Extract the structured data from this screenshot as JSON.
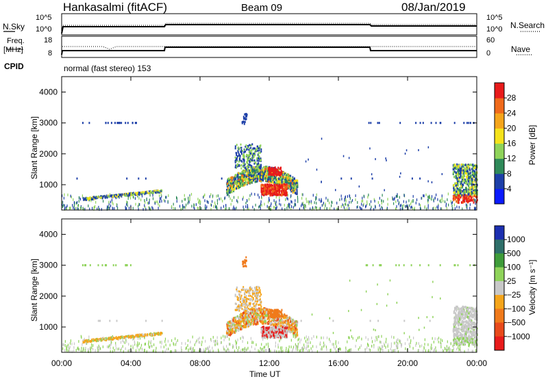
{
  "header": {
    "radar": "Hankasalmi (fitACF)",
    "beam": "Beam 09",
    "date": "08/Jan/2019"
  },
  "nsky_panel": {
    "left_label": "N.Sky",
    "left_ticks": [
      "10^5",
      "10^0"
    ],
    "right_label": "N.Search",
    "right_ticks": [
      "10^5",
      "10^0"
    ]
  },
  "freq_panel": {
    "left_label_1": "Freq.",
    "left_label_2": "[MHz]",
    "left_ticks": [
      "18",
      "8"
    ],
    "right_label": "Nave",
    "right_ticks": [
      "60",
      "0"
    ]
  },
  "cpid": {
    "label": "CPID",
    "value": "normal (fast stereo) 153"
  },
  "chart_data": [
    {
      "type": "heatmap",
      "title": "",
      "ylabel": "Slant Range [km]",
      "ylim": [
        180,
        4500
      ],
      "yticks": [
        "1000",
        "2000",
        "3000",
        "4000"
      ],
      "xlim_hours": [
        0,
        24
      ],
      "colorbar_label": "Power [dB]",
      "colorbar_ticks": [
        "4",
        "8",
        "12",
        "16",
        "20",
        "24",
        "28"
      ],
      "colorbar_colors": [
        "#0a1aff",
        "#1d3fa8",
        "#2f8a5a",
        "#8fd35a",
        "#f5e21b",
        "#f5a51b",
        "#f06a1b",
        "#e81b1b"
      ],
      "regions": [
        {
          "t0": 0.0,
          "t1": 24.0,
          "r0": 180,
          "r1": 650,
          "value": "scatter"
        },
        {
          "t0": 1.2,
          "t1": 5.8,
          "r0": 500,
          "r1": 820,
          "value": "echo"
        },
        {
          "t0": 9.5,
          "t1": 13.6,
          "r0": 750,
          "r1": 1500,
          "value": "echo"
        },
        {
          "t0": 11.5,
          "t1": 13.0,
          "r0": 650,
          "r1": 1000,
          "value": "strong"
        },
        {
          "t0": 22.6,
          "t1": 24.0,
          "r0": 400,
          "r1": 1650,
          "value": "echo"
        }
      ]
    },
    {
      "type": "heatmap",
      "title": "",
      "ylabel": "Slant Range [km]",
      "ylim": [
        180,
        4500
      ],
      "yticks": [
        "1000",
        "2000",
        "3000",
        "4000"
      ],
      "xlim_hours": [
        0,
        24
      ],
      "colorbar_label": "Velocity [m s⁻¹]",
      "colorbar_ticks": [
        "1000",
        "500",
        "100",
        "25",
        "−25",
        "−100",
        "−500",
        "−1000"
      ],
      "colorbar_colors": [
        "#1c2fb0",
        "#2e6f6a",
        "#3f9c3a",
        "#8fd35a",
        "#c8c8c8",
        "#f5a51b",
        "#f07a1b",
        "#e84a1b",
        "#e81b1b"
      ],
      "regions": [
        {
          "t0": 0.0,
          "t1": 24.0,
          "r0": 180,
          "r1": 650,
          "value": "scatter"
        },
        {
          "t0": 1.2,
          "t1": 5.8,
          "r0": 500,
          "r1": 820,
          "value": "orange"
        },
        {
          "t0": 9.5,
          "t1": 13.6,
          "r0": 750,
          "r1": 1500,
          "value": "mixed"
        },
        {
          "t0": 22.6,
          "t1": 24.0,
          "r0": 400,
          "r1": 1650,
          "value": "grey"
        }
      ]
    }
  ],
  "x_axis": {
    "ticks": [
      "00:00",
      "04:00",
      "08:00",
      "12:00",
      "16:00",
      "20:00",
      "00:00"
    ],
    "label": "Time UT"
  }
}
